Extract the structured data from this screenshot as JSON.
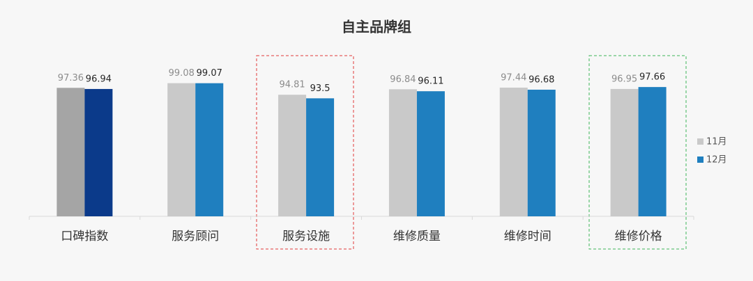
{
  "chart_data": {
    "type": "bar",
    "title": "自主品牌组",
    "categories": [
      "口碑指数",
      "服务顾问",
      "服务设施",
      "维修质量",
      "维修时间",
      "维修价格"
    ],
    "series": [
      {
        "name": "11月",
        "color": "#c9c9c9",
        "colors": [
          "#a5a5a5",
          "#c9c9c9",
          "#c9c9c9",
          "#c9c9c9",
          "#c9c9c9",
          "#c9c9c9"
        ],
        "label_color": "#8c8c8c",
        "values": [
          97.36,
          99.08,
          94.81,
          96.84,
          97.44,
          96.95
        ]
      },
      {
        "name": "12月",
        "color": "#1f7fbf",
        "colors": [
          "#0b3a8a",
          "#1f7fbf",
          "#1f7fbf",
          "#1f7fbf",
          "#1f7fbf",
          "#1f7fbf"
        ],
        "label_color": "#262626",
        "values": [
          96.94,
          99.07,
          93.5,
          96.11,
          96.68,
          97.66
        ]
      }
    ],
    "ylim": [
      50,
      100
    ],
    "grid": false,
    "legend": "right"
  }
}
